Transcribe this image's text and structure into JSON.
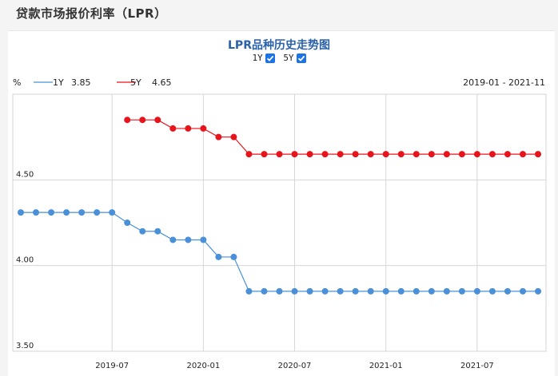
{
  "page": {
    "title": "贷款市场报价利率（LPR）"
  },
  "controls": {
    "toggle_1y_label": "1Y",
    "toggle_5y_label": "5Y",
    "toggle_1y_checked": true,
    "toggle_5y_checked": true
  },
  "legend": {
    "unit": "%",
    "items": [
      {
        "name": "1Y",
        "value": "3.85",
        "color": "#4a90d9"
      },
      {
        "name": "5Y",
        "value": "4.65",
        "color": "#e8141b"
      }
    ],
    "date_range": "2019-01 - 2021-11"
  },
  "chart_data": {
    "type": "line",
    "title": "LPR品种历史走势图",
    "ylim": [
      3.5,
      5.0
    ],
    "y_ticks": [
      3.5,
      4.0,
      4.5
    ],
    "y_tick_labels": [
      "3.50",
      "4.00",
      "4.50"
    ],
    "x_ticks": [
      "2019-07",
      "2020-01",
      "2020-07",
      "2021-01",
      "2021-07"
    ],
    "x": [
      "2019-01",
      "2019-02",
      "2019-03",
      "2019-04",
      "2019-05",
      "2019-06",
      "2019-07",
      "2019-08",
      "2019-09",
      "2019-10",
      "2019-11",
      "2019-12",
      "2020-01",
      "2020-02",
      "2020-03",
      "2020-04",
      "2020-05",
      "2020-06",
      "2020-07",
      "2020-08",
      "2020-09",
      "2020-10",
      "2020-11",
      "2020-12",
      "2021-01",
      "2021-02",
      "2021-03",
      "2021-04",
      "2021-05",
      "2021-06",
      "2021-07",
      "2021-08",
      "2021-09",
      "2021-10",
      "2021-11"
    ],
    "series": [
      {
        "name": "1Y",
        "color": "#4a90d9",
        "values": [
          4.31,
          4.31,
          4.31,
          4.31,
          4.31,
          4.31,
          4.31,
          4.25,
          4.2,
          4.2,
          4.15,
          4.15,
          4.15,
          4.05,
          4.05,
          3.85,
          3.85,
          3.85,
          3.85,
          3.85,
          3.85,
          3.85,
          3.85,
          3.85,
          3.85,
          3.85,
          3.85,
          3.85,
          3.85,
          3.85,
          3.85,
          3.85,
          3.85,
          3.85,
          3.85
        ]
      },
      {
        "name": "5Y",
        "color": "#e8141b",
        "values": [
          null,
          null,
          null,
          null,
          null,
          null,
          null,
          4.85,
          4.85,
          4.85,
          4.8,
          4.8,
          4.8,
          4.75,
          4.75,
          4.65,
          4.65,
          4.65,
          4.65,
          4.65,
          4.65,
          4.65,
          4.65,
          4.65,
          4.65,
          4.65,
          4.65,
          4.65,
          4.65,
          4.65,
          4.65,
          4.65,
          4.65,
          4.65,
          4.65
        ]
      }
    ]
  }
}
